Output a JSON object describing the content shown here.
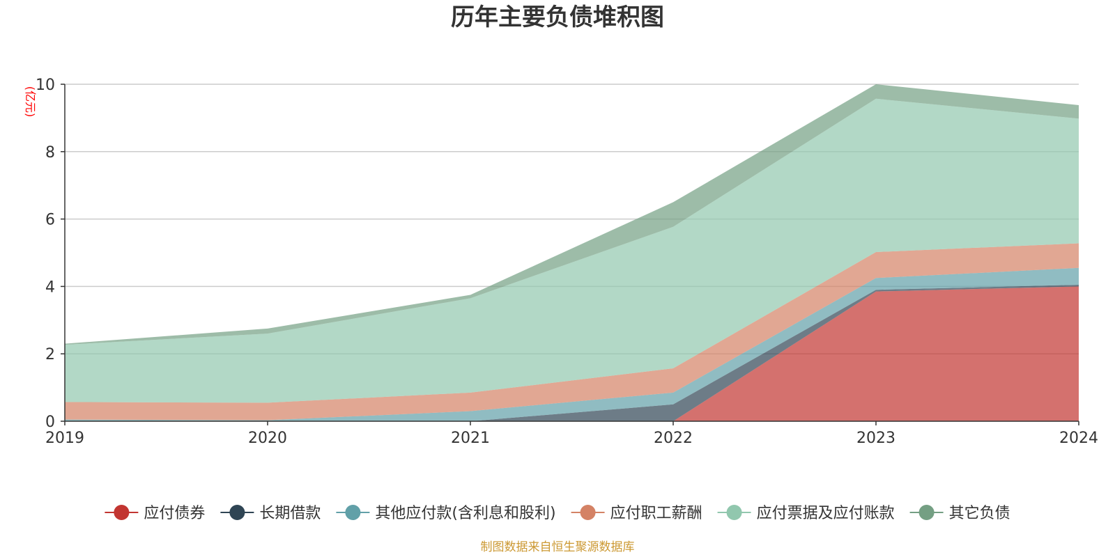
{
  "title": "历年主要负债堆积图",
  "unit_label": "(亿元)",
  "source": "制图数据来自恒生聚源数据库",
  "colors": {
    "series": [
      "#c23531",
      "#2f4554",
      "#61a0a8",
      "#d48265",
      "#91c7ae",
      "#749f83"
    ],
    "axis": "#333333",
    "grid": "#cccccc"
  },
  "chart_data": {
    "type": "area",
    "stacked": true,
    "x": [
      "2019",
      "2020",
      "2021",
      "2022",
      "2023",
      "2024"
    ],
    "ylim": [
      0,
      10
    ],
    "yticks": [
      0,
      2,
      4,
      6,
      8,
      10
    ],
    "grid": true,
    "legend_position": "bottom",
    "series": [
      {
        "name": "应付债券",
        "values": [
          0,
          0,
          0,
          0,
          3.85,
          4.0
        ]
      },
      {
        "name": "长期借款",
        "values": [
          0,
          0,
          0,
          0.5,
          0.05,
          0.05
        ]
      },
      {
        "name": "其他应付款(含利息和股利)",
        "values": [
          0.05,
          0.03,
          0.3,
          0.35,
          0.35,
          0.5
        ]
      },
      {
        "name": "应付职工薪酬",
        "values": [
          0.52,
          0.52,
          0.55,
          0.72,
          0.77,
          0.73
        ]
      },
      {
        "name": "应付票据及应付账款",
        "values": [
          1.7,
          2.05,
          2.8,
          4.2,
          4.55,
          3.7
        ]
      },
      {
        "name": "其它负债",
        "values": [
          0.03,
          0.15,
          0.1,
          0.73,
          0.43,
          0.4
        ]
      }
    ]
  }
}
